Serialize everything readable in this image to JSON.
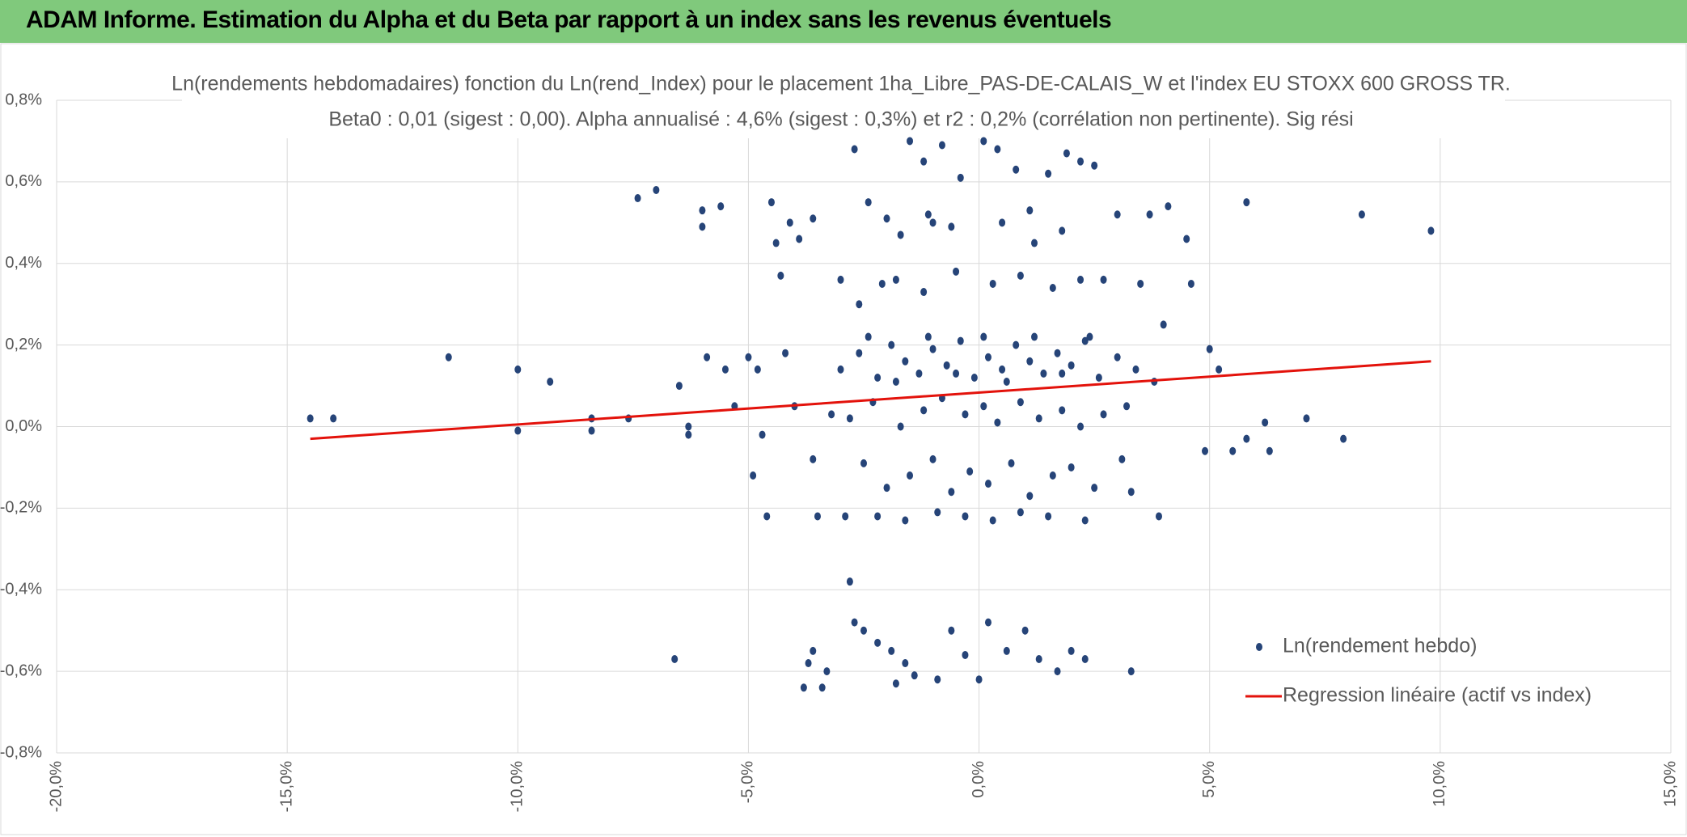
{
  "header": {
    "title": "ADAM Informe. Estimation du Alpha et du Beta par rapport à un index sans les revenus éventuels"
  },
  "chart_data": {
    "type": "scatter",
    "title": "Ln(rendements hebdomadaires) fonction du Ln(rend_Index) pour le placement 1ha_Libre_PAS-DE-CALAIS_W et l'index EU STOXX 600 GROSS TR.",
    "subtitle": "Beta0 : 0,01 (sigest : 0,00). Alpha annualisé : 4,6% (sigest : 0,3%) et r2 : 0,2% (corrélation non pertinente). Sig rési",
    "xlim": [
      -20,
      15
    ],
    "ylim": [
      -0.8,
      0.8
    ],
    "xticks": [
      {
        "value": -20,
        "label": "-20,0%"
      },
      {
        "value": -15,
        "label": "-15,0%"
      },
      {
        "value": -10,
        "label": "-10,0%"
      },
      {
        "value": -5,
        "label": "-5,0%"
      },
      {
        "value": 0,
        "label": "0,0%"
      },
      {
        "value": 5,
        "label": "5,0%"
      },
      {
        "value": 10,
        "label": "10,0%"
      },
      {
        "value": 15,
        "label": "15,0%"
      }
    ],
    "yticks": [
      {
        "value": -0.8,
        "label": "-0,8%"
      },
      {
        "value": -0.6,
        "label": "-0,6%"
      },
      {
        "value": -0.4,
        "label": "-0,4%"
      },
      {
        "value": -0.2,
        "label": "-0,2%"
      },
      {
        "value": 0,
        "label": "0,0%"
      },
      {
        "value": 0.2,
        "label": "0,2%"
      },
      {
        "value": 0.4,
        "label": "0,4%"
      },
      {
        "value": 0.6,
        "label": "0,6%"
      },
      {
        "value": 0.8,
        "label": "0,8%"
      }
    ],
    "grid": true,
    "legend": "lower-right",
    "series": [
      {
        "name": "Ln(rendement hebdo)",
        "type": "scatter",
        "color": "#264478",
        "x": [
          -14.5,
          -14,
          -11.5,
          -10,
          -10,
          -9.3,
          -8.4,
          -8.4,
          -7.6,
          -7.4,
          -7,
          -6.6,
          -6.5,
          -6.3,
          -6.3,
          -6,
          -6,
          -5.9,
          -5.6,
          -5.5,
          -5.3,
          -5,
          -4.9,
          -4.7,
          -4.8,
          -4.6,
          -4.5,
          -4.4,
          -4.3,
          -4.2,
          -4,
          -4.1,
          -3.9,
          -3.8,
          -3.7,
          -3.6,
          -3.6,
          -3.6,
          -3.5,
          -3.4,
          -3.3,
          -3.2,
          -3,
          -2.9,
          -2.8,
          -2.7,
          -2.7,
          -2.6,
          -2.5,
          -2.4,
          -2.2,
          -2.1,
          -2,
          -1.9,
          -1.8,
          -1.6,
          -1.5,
          -1.4,
          -1.2,
          -1,
          -0.9,
          -0.8,
          -0.6,
          -0.4,
          -0.3,
          0,
          0.1,
          0.2,
          0.4,
          0.6,
          0.8,
          1,
          1.2,
          1.3,
          1.5,
          1.7,
          1.9,
          2,
          2.2,
          2.3,
          2.5,
          2.7,
          3,
          3.3,
          3.3,
          3.5,
          3.7,
          3.9,
          4,
          4.1,
          4.5,
          4.6,
          4.9,
          5,
          5.2,
          5.5,
          5.8,
          5.8,
          6.2,
          6.3,
          7.1,
          7.9,
          8.3,
          9.8,
          -3,
          -2.6,
          -2.2,
          -1.9,
          -1.6,
          -1.3,
          -1,
          -0.7,
          -0.4,
          -0.1,
          0.2,
          0.5,
          0.8,
          1.1,
          1.4,
          1.7,
          2,
          2.3,
          2.6,
          3,
          3.4,
          3.8,
          -2.4,
          -1.8,
          -1.1,
          -0.5,
          0.1,
          0.6,
          1.2,
          1.8,
          2.4,
          -2.8,
          -2.3,
          -1.7,
          -1.2,
          -0.8,
          -0.3,
          0.1,
          0.4,
          0.9,
          1.3,
          1.8,
          2.2,
          2.7,
          3.2,
          -2.5,
          -2,
          -1.5,
          -1,
          -0.6,
          -0.2,
          0.2,
          0.7,
          1.1,
          1.6,
          2,
          2.5,
          3.1,
          -2.2,
          -1.6,
          -0.9,
          -0.3,
          0.3,
          0.9,
          1.5,
          2.3,
          -1.8,
          -1.2,
          -0.5,
          0.3,
          0.9,
          1.6,
          2.2,
          -1.7,
          -1.1,
          -0.6,
          0.5,
          1.1,
          1.8
        ],
        "values": [
          0.02,
          0.02,
          0.17,
          0.14,
          -0.01,
          0.11,
          0.02,
          -0.01,
          0.02,
          0.56,
          0.58,
          -0.57,
          0.1,
          0,
          -0.02,
          0.53,
          0.49,
          0.17,
          0.54,
          0.14,
          0.05,
          0.17,
          -0.12,
          -0.02,
          0.14,
          -0.22,
          0.55,
          0.45,
          0.37,
          0.18,
          0.05,
          0.5,
          0.46,
          -0.64,
          -0.58,
          -0.55,
          -0.08,
          0.51,
          -0.22,
          -0.64,
          -0.6,
          0.03,
          0.36,
          -0.22,
          -0.38,
          0.68,
          -0.48,
          0.3,
          -0.5,
          0.55,
          -0.53,
          0.35,
          0.51,
          -0.55,
          -0.63,
          -0.58,
          0.7,
          -0.61,
          0.65,
          0.5,
          -0.62,
          0.69,
          -0.5,
          0.61,
          -0.56,
          -0.62,
          0.7,
          -0.48,
          0.68,
          -0.55,
          0.63,
          -0.5,
          0.45,
          -0.57,
          0.62,
          -0.6,
          0.67,
          -0.55,
          0.65,
          -0.57,
          0.64,
          0.36,
          0.52,
          -0.6,
          -0.16,
          0.35,
          0.52,
          -0.22,
          0.25,
          0.54,
          0.46,
          0.35,
          -0.06,
          0.19,
          0.14,
          -0.06,
          0.55,
          -0.03,
          0.01,
          -0.06,
          0.02,
          -0.03,
          0.52,
          0.48,
          0.14,
          0.18,
          0.12,
          0.2,
          0.16,
          0.13,
          0.19,
          0.15,
          0.21,
          0.12,
          0.17,
          0.14,
          0.2,
          0.16,
          0.13,
          0.18,
          0.15,
          0.21,
          0.12,
          0.17,
          0.14,
          0.11,
          0.22,
          0.11,
          0.22,
          0.13,
          0.22,
          0.11,
          0.22,
          0.13,
          0.22,
          0.02,
          0.06,
          0,
          0.04,
          0.07,
          0.03,
          0.05,
          0.01,
          0.06,
          0.02,
          0.04,
          0,
          0.03,
          0.05,
          -0.09,
          -0.15,
          -0.12,
          -0.08,
          -0.16,
          -0.11,
          -0.14,
          -0.09,
          -0.17,
          -0.12,
          -0.1,
          -0.15,
          -0.08,
          -0.22,
          -0.23,
          -0.21,
          -0.22,
          -0.23,
          -0.21,
          -0.22,
          -0.23,
          0.36,
          0.33,
          0.38,
          0.35,
          0.37,
          0.34,
          0.36,
          0.47,
          0.52,
          0.49,
          0.5,
          0.53,
          0.48
        ]
      },
      {
        "name": "Regression linéaire (actif vs index)",
        "type": "line",
        "color": "#e3120b",
        "x": [
          -14.5,
          9.8
        ],
        "values": [
          -0.03,
          0.16
        ]
      }
    ]
  }
}
